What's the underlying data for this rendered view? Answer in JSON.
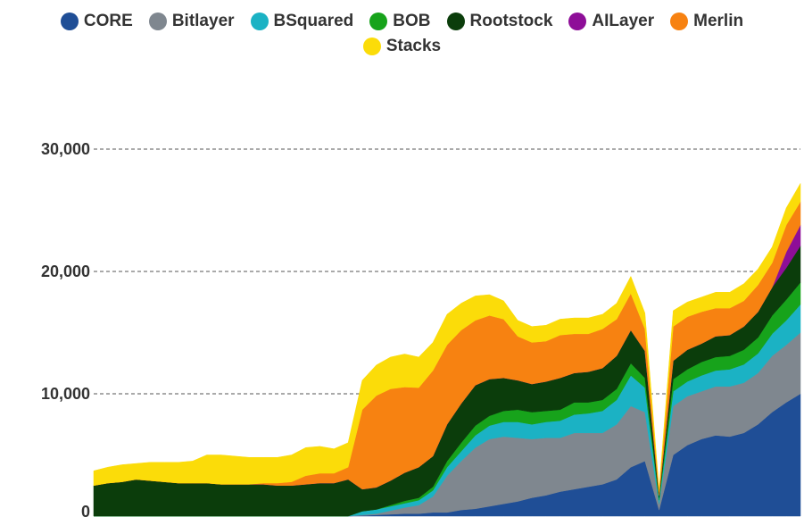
{
  "chart_data": {
    "type": "area",
    "stacked": true,
    "legend_position": "top",
    "grid": "horizontal-dashed",
    "ylim": [
      0,
      30000
    ],
    "yticks": [
      0,
      10000,
      20000,
      30000
    ],
    "ytick_labels": [
      "0",
      "10,000",
      "20,000",
      "30,000"
    ],
    "x": [
      0,
      2,
      4,
      6,
      8,
      10,
      12,
      14,
      16,
      18,
      20,
      22,
      24,
      26,
      28,
      30,
      32,
      34,
      36,
      38,
      40,
      42,
      44,
      46,
      48,
      50,
      52,
      54,
      56,
      58,
      60,
      62,
      64,
      66,
      68,
      70,
      72,
      74,
      76,
      78,
      80,
      82,
      84,
      86,
      88,
      90,
      92,
      94,
      96,
      98,
      100
    ],
    "series": [
      {
        "name": "CORE",
        "color": "#1f4e96",
        "values": [
          0,
          0,
          0,
          0,
          0,
          0,
          0,
          0,
          0,
          0,
          0,
          0,
          0,
          0,
          0,
          0,
          0,
          0,
          0,
          50,
          100,
          150,
          200,
          200,
          300,
          300,
          500,
          600,
          800,
          1000,
          1200,
          1500,
          1700,
          2000,
          2200,
          2400,
          2600,
          3000,
          4000,
          4500,
          500,
          5000,
          5800,
          6300,
          6600,
          6500,
          6800,
          7500,
          8500,
          9300,
          10000
        ]
      },
      {
        "name": "Bitlayer",
        "color": "#7f878f",
        "values": [
          0,
          0,
          0,
          0,
          0,
          0,
          0,
          0,
          0,
          0,
          0,
          0,
          0,
          0,
          0,
          0,
          0,
          0,
          0,
          50,
          100,
          300,
          500,
          700,
          1300,
          3000,
          4000,
          5000,
          5500,
          5500,
          5200,
          4800,
          4700,
          4400,
          4600,
          4400,
          4200,
          4500,
          5000,
          4000,
          500,
          4000,
          4000,
          3900,
          4000,
          4100,
          4100,
          4200,
          4600,
          4700,
          5000
        ]
      },
      {
        "name": "BSquared",
        "color": "#1bb2c4",
        "values": [
          0,
          0,
          0,
          0,
          0,
          0,
          0,
          0,
          0,
          0,
          0,
          0,
          0,
          0,
          0,
          0,
          0,
          0,
          0,
          300,
          350,
          350,
          350,
          400,
          500,
          700,
          800,
          1000,
          1100,
          1200,
          1300,
          1200,
          1300,
          1400,
          1500,
          1600,
          1800,
          2000,
          2500,
          2000,
          300,
          1200,
          1200,
          1300,
          1300,
          1400,
          1500,
          1600,
          1800,
          2000,
          2300
        ]
      },
      {
        "name": "BOB",
        "color": "#17a31b",
        "values": [
          0,
          0,
          0,
          0,
          0,
          0,
          0,
          0,
          0,
          0,
          0,
          0,
          0,
          0,
          0,
          0,
          0,
          0,
          0,
          0,
          0,
          100,
          200,
          200,
          300,
          500,
          700,
          800,
          800,
          900,
          1000,
          1000,
          900,
          900,
          1000,
          900,
          900,
          900,
          1000,
          800,
          200,
          1000,
          1000,
          1100,
          1100,
          1100,
          1200,
          1300,
          1500,
          1700,
          1800
        ]
      },
      {
        "name": "Rootstock",
        "color": "#0b3d0b",
        "values": [
          2500,
          2700,
          2800,
          3000,
          2900,
          2800,
          2700,
          2700,
          2700,
          2600,
          2600,
          2600,
          2600,
          2500,
          2500,
          2600,
          2700,
          2700,
          3000,
          1800,
          1800,
          2000,
          2300,
          2500,
          2500,
          3000,
          3200,
          3300,
          3000,
          2700,
          2400,
          2300,
          2400,
          2600,
          2400,
          2500,
          2600,
          2700,
          2700,
          2200,
          200,
          1500,
          1600,
          1500,
          1700,
          1700,
          1900,
          2100,
          2300,
          2600,
          3000
        ]
      },
      {
        "name": "AILayer",
        "color": "#8e0e98",
        "values": [
          0,
          0,
          0,
          0,
          0,
          0,
          0,
          0,
          0,
          0,
          0,
          0,
          0,
          0,
          0,
          0,
          0,
          0,
          0,
          0,
          0,
          0,
          0,
          0,
          0,
          0,
          0,
          0,
          0,
          0,
          0,
          0,
          0,
          0,
          0,
          0,
          0,
          0,
          0,
          0,
          0,
          0,
          0,
          0,
          0,
          0,
          0,
          0,
          0,
          1300,
          1700
        ]
      },
      {
        "name": "Merlin",
        "color": "#f78211",
        "values": [
          0,
          0,
          0,
          0,
          0,
          0,
          0,
          0,
          0,
          0,
          0,
          0,
          100,
          200,
          300,
          700,
          800,
          800,
          1000,
          6500,
          7500,
          7500,
          7000,
          6500,
          7000,
          6500,
          6000,
          5300,
          5200,
          4800,
          3600,
          3400,
          3300,
          3500,
          3200,
          3100,
          3200,
          3000,
          3000,
          1800,
          300,
          2800,
          2700,
          2600,
          2300,
          2200,
          2100,
          2200,
          2000,
          2200,
          1900
        ]
      },
      {
        "name": "Stacks",
        "color": "#fbdc09",
        "values": [
          1200,
          1300,
          1400,
          1300,
          1500,
          1600,
          1700,
          1800,
          2300,
          2400,
          2300,
          2200,
          2100,
          2100,
          2200,
          2300,
          2200,
          2000,
          2000,
          2400,
          2500,
          2600,
          2700,
          2500,
          2300,
          2500,
          2200,
          2000,
          1700,
          1500,
          1300,
          1300,
          1300,
          1300,
          1300,
          1300,
          1200,
          1300,
          1400,
          1300,
          200,
          1300,
          1200,
          1200,
          1300,
          1300,
          1400,
          1300,
          1300,
          1400,
          1500
        ]
      }
    ]
  }
}
